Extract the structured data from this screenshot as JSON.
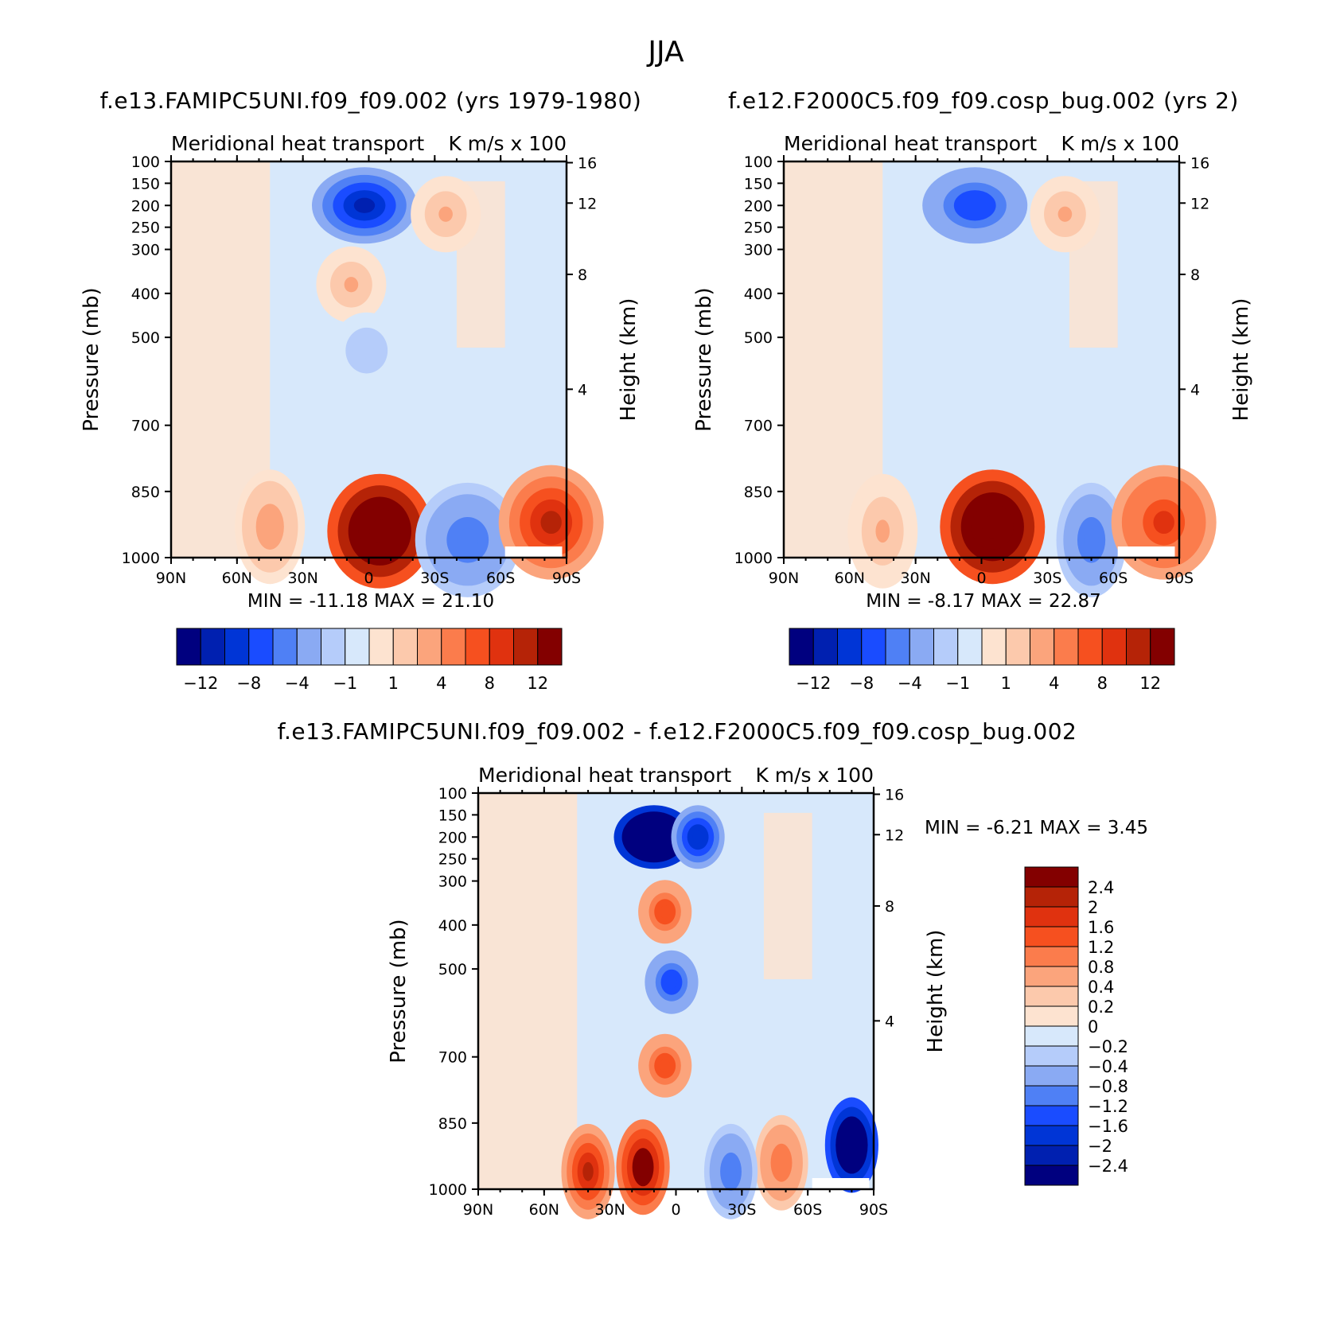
{
  "figure": {
    "title": "JJA",
    "var_title": "Meridional heat transport",
    "units": "K m/s x 100"
  },
  "colors": {
    "neg": [
      "#00007f",
      "#0020b0",
      "#0035d6",
      "#1a4cff",
      "#4f80f5",
      "#8aaaf3",
      "#b5ccfa",
      "#d7e8fb"
    ],
    "pos": [
      "#fde3d0",
      "#fcc9ac",
      "#fba47c",
      "#fb7c4c",
      "#f6501f",
      "#e0320f",
      "#b52307",
      "#830000"
    ]
  },
  "chart_data": [
    {
      "id": "panel_test",
      "type": "heatmap",
      "case_title": "f.e13.FAMIPC5UNI.f09_f09.002 (yrs 1979-1980)",
      "xlabel": "",
      "ylabel": "Pressure (mb)",
      "ylabel_right": "Height (km)",
      "x_ticks": [
        "90N",
        "60N",
        "30N",
        "0",
        "30S",
        "60S",
        "90S"
      ],
      "x_range": [
        90,
        -90
      ],
      "y_ticks": [
        "100",
        "150",
        "200",
        "250",
        "300",
        "400",
        "500",
        "700",
        "850",
        "1000"
      ],
      "y_range_mb": [
        100,
        1000
      ],
      "height_ticks": [
        "16",
        "12",
        "8",
        "4"
      ],
      "stats": {
        "min_label": "MIN =",
        "min": "-11.18",
        "max_label": "MAX =",
        "max": "21.10"
      },
      "colorbar": {
        "orientation": "horizontal",
        "labels": [
          "-12",
          "-8",
          "-4",
          "-1",
          "1",
          "4",
          "8",
          "12"
        ]
      },
      "features": [
        {
          "lat": 2,
          "p": 200,
          "value": -11
        },
        {
          "lat": -35,
          "p": 220,
          "value": 2
        },
        {
          "lat": 8,
          "p": 380,
          "value": 2
        },
        {
          "lat": 1,
          "p": 530,
          "value": -2
        },
        {
          "lat": -5,
          "p": 940,
          "value": 21
        },
        {
          "lat": -45,
          "p": 960,
          "value": -6
        },
        {
          "lat": -83,
          "p": 920,
          "value": 10
        },
        {
          "lat": 45,
          "p": 930,
          "value": 3
        }
      ]
    },
    {
      "id": "panel_ctrl",
      "type": "heatmap",
      "case_title": "f.e12.F2000C5.f09_f09.cosp_bug.002 (yrs 2)",
      "xlabel": "",
      "ylabel": "Pressure (mb)",
      "ylabel_right": "Height (km)",
      "x_ticks": [
        "90N",
        "60N",
        "30N",
        "0",
        "30S",
        "60S",
        "90S"
      ],
      "x_range": [
        90,
        -90
      ],
      "y_ticks": [
        "100",
        "150",
        "200",
        "250",
        "300",
        "400",
        "500",
        "700",
        "850",
        "1000"
      ],
      "y_range_mb": [
        100,
        1000
      ],
      "height_ticks": [
        "16",
        "12",
        "8",
        "4"
      ],
      "stats": {
        "min_label": "MIN =",
        "min": "-8.17",
        "max_label": "MAX =",
        "max": "22.87"
      },
      "colorbar": {
        "orientation": "horizontal",
        "labels": [
          "-12",
          "-8",
          "-4",
          "-1",
          "1",
          "4",
          "8",
          "12"
        ]
      },
      "features": [
        {
          "lat": 3,
          "p": 200,
          "value": -8
        },
        {
          "lat": -38,
          "p": 220,
          "value": 2
        },
        {
          "lat": -5,
          "p": 930,
          "value": 22
        },
        {
          "lat": -50,
          "p": 960,
          "value": -5
        },
        {
          "lat": -83,
          "p": 920,
          "value": 9
        },
        {
          "lat": 45,
          "p": 940,
          "value": 2
        }
      ]
    },
    {
      "id": "panel_diff",
      "type": "heatmap",
      "case_title": "f.e13.FAMIPC5UNI.f09_f09.002 - f.e12.F2000C5.f09_f09.cosp_bug.002",
      "xlabel": "",
      "ylabel": "Pressure (mb)",
      "ylabel_right": "Height (km)",
      "x_ticks": [
        "90N",
        "60N",
        "30N",
        "0",
        "30S",
        "60S",
        "90S"
      ],
      "x_range": [
        90,
        -90
      ],
      "y_ticks": [
        "100",
        "150",
        "200",
        "250",
        "300",
        "400",
        "500",
        "700",
        "850",
        "1000"
      ],
      "y_range_mb": [
        100,
        1000
      ],
      "height_ticks": [
        "16",
        "12",
        "8",
        "4"
      ],
      "stats": {
        "min_label": "MIN =",
        "min": "-6.21",
        "max_label": "MAX =",
        "max": "3.45"
      },
      "colorbar": {
        "orientation": "vertical",
        "labels": [
          "2.4",
          "2",
          "1.6",
          "1.2",
          "0.8",
          "0.4",
          "0.2",
          "0",
          "-0.2",
          "-0.4",
          "-0.8",
          "-1.2",
          "-1.6",
          "-2",
          "-2.4"
        ]
      },
      "features": [
        {
          "lat": 10,
          "p": 200,
          "value": -6
        },
        {
          "lat": -10,
          "p": 200,
          "value": -2
        },
        {
          "lat": 5,
          "p": 370,
          "value": 1.5
        },
        {
          "lat": 2,
          "p": 530,
          "value": -1.5
        },
        {
          "lat": 5,
          "p": 720,
          "value": 1.5
        },
        {
          "lat": 15,
          "p": 950,
          "value": 3
        },
        {
          "lat": 40,
          "p": 960,
          "value": 2
        },
        {
          "lat": -80,
          "p": 900,
          "value": -4
        },
        {
          "lat": -48,
          "p": 940,
          "value": 1
        },
        {
          "lat": -25,
          "p": 960,
          "value": -1.2
        }
      ]
    }
  ]
}
